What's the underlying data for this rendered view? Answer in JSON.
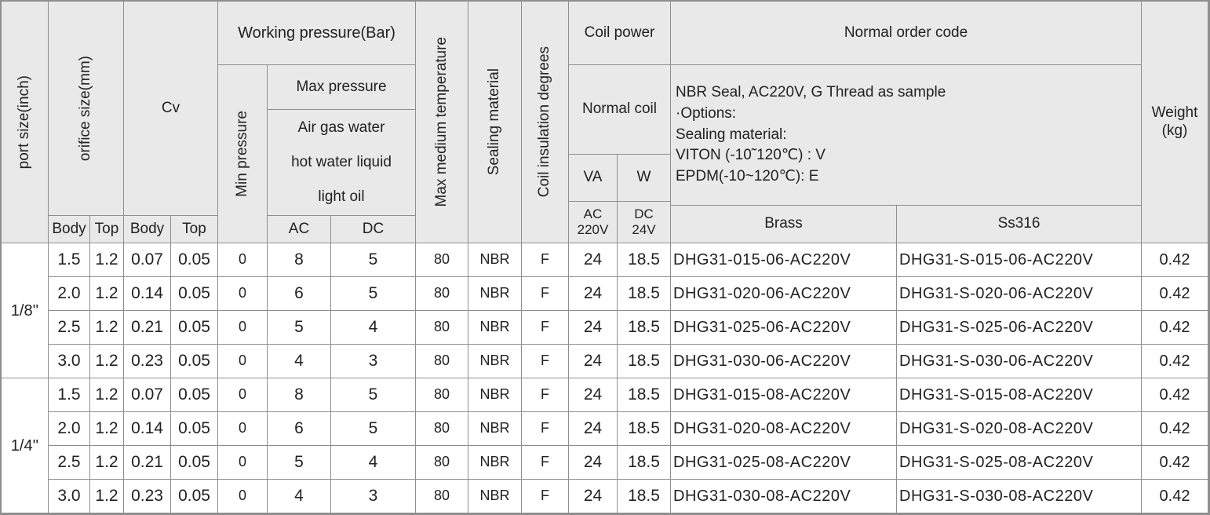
{
  "colors": {
    "header_bg": "#e9e9e9",
    "border": "#8f8f8f",
    "text": "#222222"
  },
  "table": {
    "headers": {
      "port_size": "port size(inch)",
      "orifice_size": "orifice size(mm)",
      "cv": "Cv",
      "body": "Body",
      "top": "Top",
      "working_pressure": "Working pressure(Bar)",
      "min_pressure": "Min pressure",
      "max_pressure": "Max pressure",
      "max_pressure_media": "Air gas water\nhot water liquid\nlight oil",
      "ac": "AC",
      "dc": "DC",
      "max_medium_temperature": "Max medium temperature",
      "sealing_material": "Sealing material",
      "coil_insulation": "Coil insulation degrees",
      "coil_power": "Coil power",
      "normal_coil": "Normal coil",
      "va": "VA",
      "w": "W",
      "ac_220v": "AC\n220V",
      "dc_24v": "DC\n24V",
      "normal_order_code": "Normal order code",
      "order_note_lines": [
        "NBR Seal, AC220V, G Thread as sample",
        "·Options:",
        "Sealing material:",
        "VITON (-10˜120℃) : V",
        "EPDM(-10~120℃): E"
      ],
      "brass": "Brass",
      "ss316": "Ss316",
      "weight": "Weight\n(kg)"
    },
    "groups": [
      {
        "port": "1/8''",
        "rows": [
          {
            "orifice_body": "1.5",
            "orifice_top": "1.2",
            "cv_body": "0.07",
            "cv_top": "0.05",
            "min_pressure": "0",
            "max_ac": "8",
            "max_dc": "5",
            "max_temp": "80",
            "seal": "NBR",
            "insulation": "F",
            "va": "24",
            "w": "18.5",
            "brass": "DHG31-015-06-AC220V",
            "ss316": "DHG31-S-015-06-AC220V",
            "weight": "0.42"
          },
          {
            "orifice_body": "2.0",
            "orifice_top": "1.2",
            "cv_body": "0.14",
            "cv_top": "0.05",
            "min_pressure": "0",
            "max_ac": "6",
            "max_dc": "5",
            "max_temp": "80",
            "seal": "NBR",
            "insulation": "F",
            "va": "24",
            "w": "18.5",
            "brass": "DHG31-020-06-AC220V",
            "ss316": "DHG31-S-020-06-AC220V",
            "weight": "0.42"
          },
          {
            "orifice_body": "2.5",
            "orifice_top": "1.2",
            "cv_body": "0.21",
            "cv_top": "0.05",
            "min_pressure": "0",
            "max_ac": "5",
            "max_dc": "4",
            "max_temp": "80",
            "seal": "NBR",
            "insulation": "F",
            "va": "24",
            "w": "18.5",
            "brass": "DHG31-025-06-AC220V",
            "ss316": "DHG31-S-025-06-AC220V",
            "weight": "0.42"
          },
          {
            "orifice_body": "3.0",
            "orifice_top": "1.2",
            "cv_body": "0.23",
            "cv_top": "0.05",
            "min_pressure": "0",
            "max_ac": "4",
            "max_dc": "3",
            "max_temp": "80",
            "seal": "NBR",
            "insulation": "F",
            "va": "24",
            "w": "18.5",
            "brass": "DHG31-030-06-AC220V",
            "ss316": "DHG31-S-030-06-AC220V",
            "weight": "0.42"
          }
        ]
      },
      {
        "port": "1/4''",
        "rows": [
          {
            "orifice_body": "1.5",
            "orifice_top": "1.2",
            "cv_body": "0.07",
            "cv_top": "0.05",
            "min_pressure": "0",
            "max_ac": "8",
            "max_dc": "5",
            "max_temp": "80",
            "seal": "NBR",
            "insulation": "F",
            "va": "24",
            "w": "18.5",
            "brass": "DHG31-015-08-AC220V",
            "ss316": "DHG31-S-015-08-AC220V",
            "weight": "0.42"
          },
          {
            "orifice_body": "2.0",
            "orifice_top": "1.2",
            "cv_body": "0.14",
            "cv_top": "0.05",
            "min_pressure": "0",
            "max_ac": "6",
            "max_dc": "5",
            "max_temp": "80",
            "seal": "NBR",
            "insulation": "F",
            "va": "24",
            "w": "18.5",
            "brass": "DHG31-020-08-AC220V",
            "ss316": "DHG31-S-020-08-AC220V",
            "weight": "0.42"
          },
          {
            "orifice_body": "2.5",
            "orifice_top": "1.2",
            "cv_body": "0.21",
            "cv_top": "0.05",
            "min_pressure": "0",
            "max_ac": "5",
            "max_dc": "4",
            "max_temp": "80",
            "seal": "NBR",
            "insulation": "F",
            "va": "24",
            "w": "18.5",
            "brass": "DHG31-025-08-AC220V",
            "ss316": "DHG31-S-025-08-AC220V",
            "weight": "0.42"
          },
          {
            "orifice_body": "3.0",
            "orifice_top": "1.2",
            "cv_body": "0.23",
            "cv_top": "0.05",
            "min_pressure": "0",
            "max_ac": "4",
            "max_dc": "3",
            "max_temp": "80",
            "seal": "NBR",
            "insulation": "F",
            "va": "24",
            "w": "18.5",
            "brass": "DHG31-030-08-AC220V",
            "ss316": "DHG31-S-030-08-AC220V",
            "weight": "0.42"
          }
        ]
      }
    ]
  }
}
